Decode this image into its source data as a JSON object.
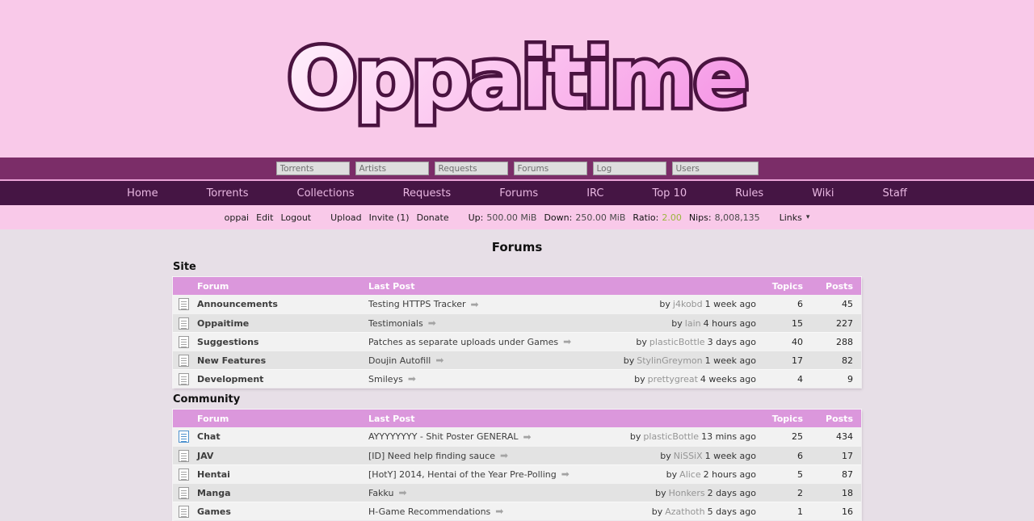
{
  "logo": {
    "text": "Oppaitime"
  },
  "search_bar": {
    "inputs": [
      {
        "placeholder": "Torrents"
      },
      {
        "placeholder": "Artists"
      },
      {
        "placeholder": "Requests"
      },
      {
        "placeholder": "Forums"
      },
      {
        "placeholder": "Log"
      },
      {
        "placeholder": "Users"
      }
    ]
  },
  "nav": {
    "items": [
      "Home",
      "Torrents",
      "Collections",
      "Requests",
      "Forums",
      "IRC",
      "Top 10",
      "Rules",
      "Wiki",
      "Staff"
    ]
  },
  "user_bar": {
    "username": "oppai",
    "edit": "Edit",
    "logout": "Logout",
    "upload": "Upload",
    "invite": "Invite (1)",
    "donate": "Donate",
    "up_label": "Up:",
    "up_value": "500.00 MiB",
    "down_label": "Down:",
    "down_value": "250.00 MiB",
    "ratio_label": "Ratio:",
    "ratio_value": "2.00",
    "nips_label": "Nips:",
    "nips_value": "8,008,135",
    "links": "Links"
  },
  "page": {
    "title": "Forums"
  },
  "labels": {
    "by": "by"
  },
  "columns": {
    "forum": "Forum",
    "last_post": "Last Post",
    "topics": "Topics",
    "posts": "Posts"
  },
  "sections": [
    {
      "heading": "Site",
      "rows": [
        {
          "name": "Announcements",
          "last_post": "Testing HTTPS Tracker",
          "user": "j4kobd",
          "time": "1 week ago",
          "topics": "6",
          "posts": "45",
          "unread": false
        },
        {
          "name": "Oppaitime",
          "last_post": "Testimonials",
          "user": "lain",
          "time": "4 hours ago",
          "topics": "15",
          "posts": "227",
          "unread": false
        },
        {
          "name": "Suggestions",
          "last_post": "Patches as separate uploads under Games",
          "user": "plasticBottle",
          "time": "3 days ago",
          "topics": "40",
          "posts": "288",
          "unread": false
        },
        {
          "name": "New Features",
          "last_post": "Doujin Autofill",
          "user": "StylinGreymon",
          "time": "1 week ago",
          "topics": "17",
          "posts": "82",
          "unread": false
        },
        {
          "name": "Development",
          "last_post": "Smileys",
          "user": "prettygreat",
          "time": "4 weeks ago",
          "topics": "4",
          "posts": "9",
          "unread": false
        }
      ]
    },
    {
      "heading": "Community",
      "rows": [
        {
          "name": "Chat",
          "last_post": "AYYYYYYYY - Shit Poster GENERAL",
          "user": "plasticBottle",
          "time": "13 mins ago",
          "topics": "25",
          "posts": "434",
          "unread": true
        },
        {
          "name": "JAV",
          "last_post": "[ID] Need help finding sauce",
          "user": "NiSSiX",
          "time": "1 week ago",
          "topics": "6",
          "posts": "17",
          "unread": false
        },
        {
          "name": "Hentai",
          "last_post": "[HotY] 2014, Hentai of the Year Pre-Polling",
          "user": "Alice",
          "time": "2 hours ago",
          "topics": "5",
          "posts": "87",
          "unread": false
        },
        {
          "name": "Manga",
          "last_post": "Fakku",
          "user": "Honkers",
          "time": "2 days ago",
          "topics": "2",
          "posts": "18",
          "unread": false
        },
        {
          "name": "Games",
          "last_post": "H-Game Recommendations",
          "user": "Azathoth",
          "time": "5 days ago",
          "topics": "1",
          "posts": "16",
          "unread": false
        }
      ]
    }
  ],
  "colors": {
    "header_pink": "#f9c9e9",
    "strip_purple": "#7b2d68",
    "nav_purple": "#451544",
    "body_bg": "#e7dfe7",
    "table_header_pink": "#db97dc",
    "row_light": "#f2f2f2",
    "row_dark": "#e3e3e3",
    "ratio_green": "#9ab63c",
    "unread_blue": "#4f93cf"
  }
}
